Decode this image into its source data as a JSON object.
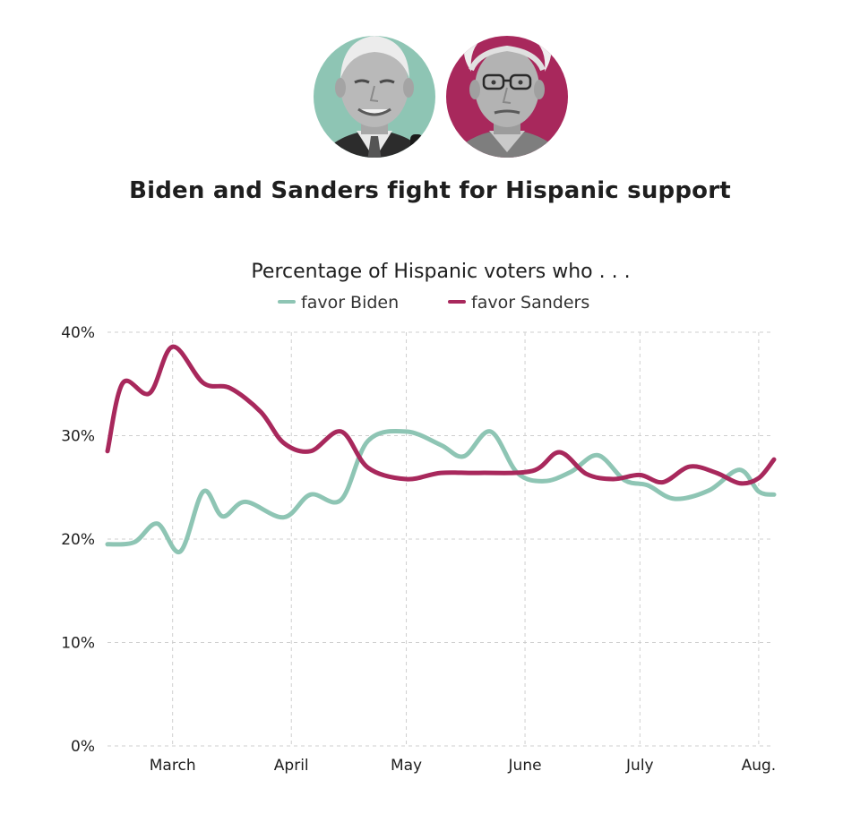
{
  "header": {
    "title": "Biden and Sanders fight for Hispanic support"
  },
  "portraits": [
    {
      "name": "biden-portrait",
      "color": "#8ec5b4"
    },
    {
      "name": "sanders-portrait",
      "color": "#a8285c"
    }
  ],
  "chart_data": {
    "type": "line",
    "subtitle": "Percentage of Hispanic voters who  . . .",
    "x_ticks": [
      "March",
      "April",
      "May",
      "June",
      "July",
      "Aug."
    ],
    "y_ticks": [
      "0%",
      "10%",
      "20%",
      "30%",
      "40%"
    ],
    "ylim": [
      0,
      40
    ],
    "xlim": [
      "Feb 13",
      "Aug 5"
    ],
    "grid": true,
    "legend_position": "top-center",
    "series": [
      {
        "name": "favor Biden",
        "color": "#8ec5b4",
        "points": [
          [
            "Feb 13",
            19.5
          ],
          [
            "Feb 20",
            19.7
          ],
          [
            "Feb 26",
            21.5
          ],
          [
            "Mar 3",
            18.8
          ],
          [
            "Mar 9",
            24.6
          ],
          [
            "Mar 14",
            22.2
          ],
          [
            "Mar 20",
            23.6
          ],
          [
            "Mar 30",
            22.1
          ],
          [
            "Apr 6",
            24.3
          ],
          [
            "Apr 14",
            23.8
          ],
          [
            "Apr 21",
            29.5
          ],
          [
            "May 1",
            30.4
          ],
          [
            "May 10",
            29.1
          ],
          [
            "May 16",
            28.0
          ],
          [
            "May 23",
            30.4
          ],
          [
            "May 30",
            26.4
          ],
          [
            "Jun 6",
            25.6
          ],
          [
            "Jun 13",
            26.5
          ],
          [
            "Jun 20",
            28.1
          ],
          [
            "Jun 27",
            25.7
          ],
          [
            "Jul 3",
            25.2
          ],
          [
            "Jul 10",
            23.9
          ],
          [
            "Jul 19",
            24.7
          ],
          [
            "Jul 27",
            26.7
          ],
          [
            "Aug 1",
            24.6
          ],
          [
            "Aug 5",
            24.3
          ]
        ]
      },
      {
        "name": "favor Sanders",
        "color": "#a8285c",
        "points": [
          [
            "Feb 13",
            28.5
          ],
          [
            "Feb 17",
            35.1
          ],
          [
            "Feb 24",
            34.1
          ],
          [
            "Mar 1",
            38.6
          ],
          [
            "Mar 9",
            35.1
          ],
          [
            "Mar 16",
            34.6
          ],
          [
            "Mar 24",
            32.3
          ],
          [
            "Mar 30",
            29.3
          ],
          [
            "Apr 6",
            28.5
          ],
          [
            "Apr 14",
            30.4
          ],
          [
            "Apr 21",
            26.9
          ],
          [
            "May 1",
            25.8
          ],
          [
            "May 10",
            26.4
          ],
          [
            "May 20",
            26.4
          ],
          [
            "Jun 3",
            26.6
          ],
          [
            "Jun 10",
            28.4
          ],
          [
            "Jun 17",
            26.3
          ],
          [
            "Jun 24",
            25.8
          ],
          [
            "Jul 1",
            26.2
          ],
          [
            "Jul 7",
            25.5
          ],
          [
            "Jul 14",
            27.0
          ],
          [
            "Jul 21",
            26.4
          ],
          [
            "Jul 27",
            25.4
          ],
          [
            "Aug 1",
            25.9
          ],
          [
            "Aug 5",
            27.7
          ]
        ]
      }
    ]
  }
}
